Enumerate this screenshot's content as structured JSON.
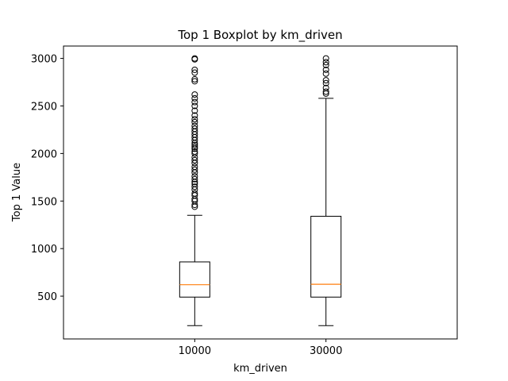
{
  "chart_data": {
    "type": "boxplot",
    "title": "Top 1 Boxplot by km_driven",
    "xlabel": "km_driven",
    "ylabel": "Top 1 Value",
    "categories": [
      "10000",
      "30000"
    ],
    "ylim": [
      50,
      3130
    ],
    "yticks": [
      500,
      1000,
      1500,
      2000,
      2500,
      3000
    ],
    "grid": false,
    "colors": {
      "median": "#ff7f0e",
      "box": "#000000",
      "frame": "#000000"
    },
    "boxes": [
      {
        "category": "10000",
        "whisker_low": 190,
        "q1": 490,
        "median": 620,
        "q3": 860,
        "whisker_high": 1350,
        "outliers": [
          1440,
          1460,
          1500,
          1520,
          1560,
          1580,
          1620,
          1650,
          1680,
          1700,
          1730,
          1760,
          1800,
          1830,
          1860,
          1900,
          1930,
          1960,
          2000,
          2020,
          2050,
          2070,
          2090,
          2110,
          2140,
          2170,
          2200,
          2230,
          2260,
          2290,
          2330,
          2360,
          2400,
          2450,
          2500,
          2540,
          2580,
          2620,
          2760,
          2780,
          2850,
          2880,
          2990,
          3000
        ]
      },
      {
        "category": "30000",
        "whisker_low": 190,
        "q1": 490,
        "median": 625,
        "q3": 1340,
        "whisker_high": 2580,
        "outliers": [
          2630,
          2650,
          2690,
          2740,
          2770,
          2840,
          2880,
          2930,
          2960,
          3000
        ]
      }
    ]
  }
}
